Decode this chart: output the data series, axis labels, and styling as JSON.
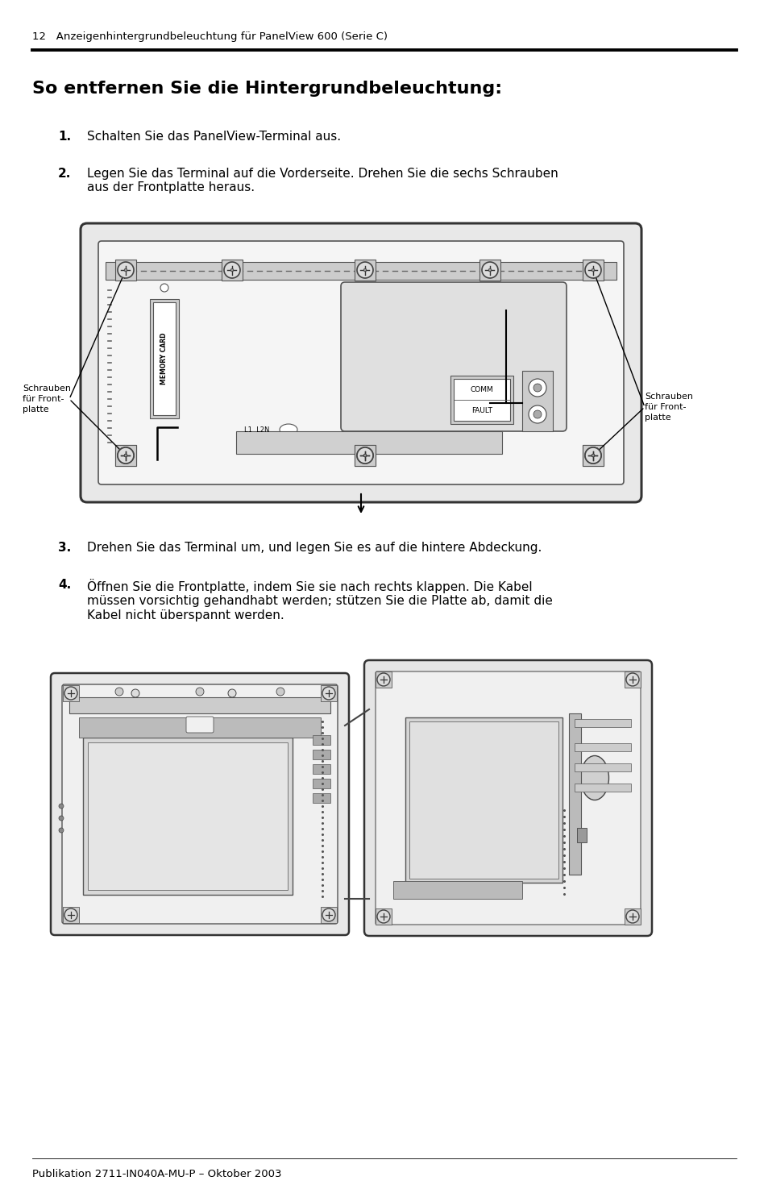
{
  "bg_color": "#ffffff",
  "header_text": "12   Anzeigenhintergrundbeleuchtung für PanelView 600 (Serie C)",
  "title": "So entfernen Sie die Hintergrundbeleuchtung:",
  "steps": [
    {
      "num": "1.",
      "text": "Schalten Sie das PanelView-Terminal aus."
    },
    {
      "num": "2.",
      "text": "Legen Sie das Terminal auf die Vorderseite. Drehen Sie die sechs Schrauben\naus der Frontplatte heraus."
    },
    {
      "num": "3.",
      "text": "Drehen Sie das Terminal um, und legen Sie es auf die hintere Abdeckung."
    },
    {
      "num": "4.",
      "text": "Öffnen Sie die Frontplatte, indem Sie sie nach rechts klappen. Die Kabel\nmüssen vorsichtig gehandhabt werden; stützen Sie die Platte ab, damit die\nKabel nicht überspannt werden."
    }
  ],
  "label_left": "Schrauben\nfür Front-\nplatte",
  "label_right": "Schrauben\nfür Front-\nplatte",
  "footer_text": "Publikation 2711-IN040A-MU-P – Oktober 2003",
  "header_fontsize": 9.5,
  "title_fontsize": 16,
  "step_num_fontsize": 11,
  "step_text_fontsize": 11,
  "footer_fontsize": 9.5,
  "label_fontsize": 8
}
